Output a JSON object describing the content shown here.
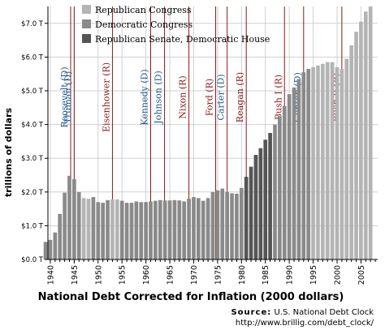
{
  "chart_data": {
    "type": "bar",
    "title": "",
    "xlabel": "National Debt Corrected for Inflation (2000 dollars)",
    "ylabel": "trillions of dollars",
    "ylim": [
      0,
      7.5
    ],
    "yticks": [
      0,
      1,
      2,
      3,
      4,
      5,
      6,
      7
    ],
    "ytick_labels": [
      "$0.0 T",
      "$1.0 T",
      "$2.0 T",
      "$3.0 T",
      "$4.0 T",
      "$5.0 T",
      "$6.0 T",
      "$7.0 T"
    ],
    "xticks": [
      1940,
      1945,
      1950,
      1955,
      1960,
      1965,
      1970,
      1975,
      1980,
      1985,
      1990,
      1995,
      2000,
      2005
    ],
    "grid": true,
    "legend_position": "top-left",
    "series": [
      {
        "name": "Republican Congress",
        "color": "#b4b4b4"
      },
      {
        "name": "Democratic Congress",
        "color": "#8a8a8a"
      },
      {
        "name": "Republican Senate, Democratic House",
        "color": "#555555"
      }
    ],
    "x": [
      1939,
      1940,
      1941,
      1942,
      1943,
      1944,
      1945,
      1946,
      1947,
      1948,
      1949,
      1950,
      1951,
      1952,
      1953,
      1954,
      1955,
      1956,
      1957,
      1958,
      1959,
      1960,
      1961,
      1962,
      1963,
      1964,
      1965,
      1966,
      1967,
      1968,
      1969,
      1970,
      1971,
      1972,
      1973,
      1974,
      1975,
      1976,
      1977,
      1978,
      1979,
      1980,
      1981,
      1982,
      1983,
      1984,
      1985,
      1986,
      1987,
      1988,
      1989,
      1990,
      1991,
      1992,
      1993,
      1994,
      1995,
      1996,
      1997,
      1998,
      1999,
      2000,
      2001,
      2002,
      2003,
      2004,
      2005,
      2006,
      2007
    ],
    "values": [
      0.52,
      0.58,
      0.8,
      1.35,
      1.98,
      2.48,
      2.38,
      2.0,
      1.82,
      1.8,
      1.85,
      1.7,
      1.68,
      1.76,
      1.78,
      1.78,
      1.74,
      1.68,
      1.68,
      1.72,
      1.7,
      1.7,
      1.72,
      1.74,
      1.76,
      1.75,
      1.75,
      1.76,
      1.75,
      1.72,
      1.8,
      1.85,
      1.82,
      1.74,
      1.82,
      2.0,
      2.05,
      2.1,
      2.0,
      1.96,
      1.95,
      2.12,
      2.45,
      2.75,
      3.1,
      3.3,
      3.55,
      3.75,
      4.0,
      4.25,
      4.55,
      4.9,
      5.1,
      5.35,
      5.55,
      5.65,
      5.7,
      5.75,
      5.8,
      5.85,
      5.85,
      5.7,
      5.65,
      5.95,
      6.35,
      6.75,
      7.05,
      7.35,
      7.5
    ],
    "party": [
      1,
      1,
      1,
      1,
      1,
      1,
      1,
      1,
      0,
      0,
      1,
      1,
      1,
      1,
      0,
      0,
      1,
      1,
      1,
      1,
      1,
      1,
      1,
      1,
      1,
      1,
      1,
      1,
      1,
      1,
      1,
      1,
      1,
      1,
      1,
      1,
      1,
      1,
      1,
      1,
      1,
      1,
      2,
      2,
      2,
      2,
      2,
      2,
      1,
      1,
      1,
      1,
      1,
      1,
      1,
      1,
      0,
      0,
      0,
      0,
      0,
      0,
      0,
      0,
      0,
      0,
      0,
      0,
      0
    ],
    "annotations": [
      {
        "text": "Roosevelt (D)",
        "x": 1933,
        "party": "D"
      },
      {
        "text": "Truman (D)",
        "x": 1945,
        "party": "D"
      },
      {
        "text": "Eisenhower (R)",
        "x": 1953,
        "party": "R"
      },
      {
        "text": "Kennedy (D)",
        "x": 1961,
        "party": "D"
      },
      {
        "text": "Johnson (D)",
        "x": 1963.9,
        "party": "D"
      },
      {
        "text": "Nixon (R)",
        "x": 1969,
        "party": "R"
      },
      {
        "text": "Ford (R)",
        "x": 1974.6,
        "party": "R"
      },
      {
        "text": "Carter (D)",
        "x": 1977,
        "party": "D"
      },
      {
        "text": "Reagan (R)",
        "x": 1981,
        "party": "R"
      },
      {
        "text": "Bush I (R)",
        "x": 1989,
        "party": "R"
      },
      {
        "text": "Clinton (D)",
        "x": 1993,
        "party": "D"
      },
      {
        "text": "Bush II (R)",
        "x": 2001,
        "party": "R"
      }
    ],
    "colors": {
      "republican": "#8b1a1a",
      "democrat": "#1f5a8b",
      "grid": "#d0d0d0",
      "axis": "#000000"
    }
  },
  "source": {
    "label": "Source:",
    "name": "U.S. National Debt Clock",
    "url": "http://www.brillig.com/debt_clock/"
  }
}
